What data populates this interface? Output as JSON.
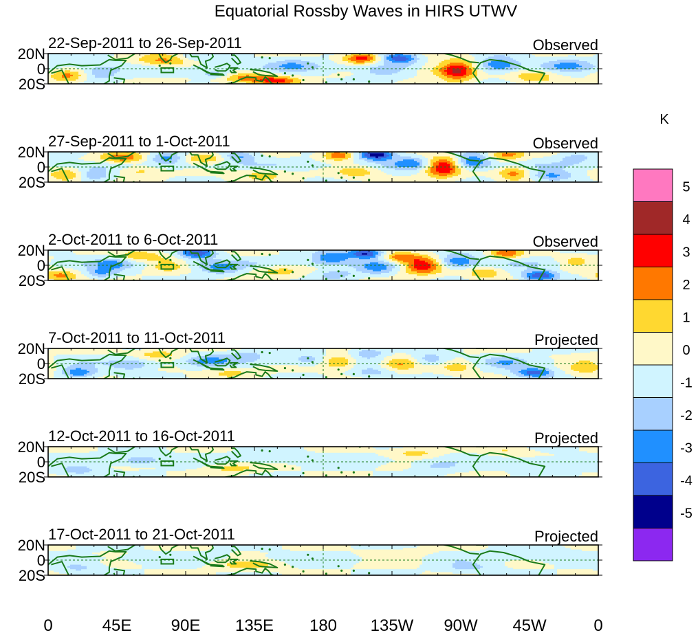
{
  "chart_data": {
    "type": "heatmap",
    "title": "Equatorial Rossby Waves in HIRS UTWV",
    "colorbar": {
      "unit_label": "K",
      "tick_labels": [
        "5",
        "4",
        "3",
        "2",
        "1",
        "0",
        "-1",
        "-2",
        "-3",
        "-4",
        "-5"
      ],
      "levels": [
        5,
        4,
        3,
        2,
        1,
        0,
        -1,
        -2,
        -3,
        -4,
        -5
      ],
      "colors": [
        "#ff78c0",
        "#a02828",
        "#ff0000",
        "#ff7800",
        "#ffd830",
        "#fff8c8",
        "#d0f4ff",
        "#a8d0ff",
        "#2090ff",
        "#3c64e0",
        "#00008c",
        "#8c28f0"
      ]
    },
    "x_ticks": [
      "0",
      "45E",
      "90E",
      "135E",
      "180",
      "135W",
      "90W",
      "45W",
      "0"
    ],
    "x_tick_lon": [
      0,
      45,
      90,
      135,
      180,
      225,
      270,
      315,
      360
    ],
    "y_ticks": [
      "20N",
      "0",
      "20S"
    ],
    "y_tick_lat": [
      20,
      0,
      -20
    ],
    "lat_range": [
      -20,
      20
    ],
    "lon_range": [
      0,
      360
    ],
    "panels": [
      {
        "period": "22-Sep-2011 to 26-Sep-2011",
        "kind": "Observed",
        "anomalies": [
          {
            "lon": 78,
            "lat": 10,
            "amp": 2.6,
            "sx": 14,
            "sy": 6
          },
          {
            "lon": 95,
            "lat": 14,
            "amp": -1.4,
            "sx": 10,
            "sy": 5
          },
          {
            "lon": 12,
            "lat": -10,
            "amp": 2.2,
            "sx": 8,
            "sy": 6
          },
          {
            "lon": 35,
            "lat": -6,
            "amp": -1.8,
            "sx": 8,
            "sy": 6
          },
          {
            "lon": 128,
            "lat": -12,
            "amp": 2.4,
            "sx": 14,
            "sy": 5
          },
          {
            "lon": 150,
            "lat": -16,
            "amp": 2.8,
            "sx": 10,
            "sy": 4
          },
          {
            "lon": 110,
            "lat": -8,
            "amp": -2.2,
            "sx": 8,
            "sy": 4
          },
          {
            "lon": 160,
            "lat": 6,
            "amp": -1.4,
            "sx": 10,
            "sy": 6
          },
          {
            "lon": 205,
            "lat": 14,
            "amp": 3.6,
            "sx": 8,
            "sy": 5
          },
          {
            "lon": 230,
            "lat": 14,
            "amp": -3.8,
            "sx": 8,
            "sy": 5
          },
          {
            "lon": 218,
            "lat": -4,
            "amp": -1.4,
            "sx": 10,
            "sy": 6
          },
          {
            "lon": 252,
            "lat": 0,
            "amp": 1.6,
            "sx": 10,
            "sy": 6
          },
          {
            "lon": 268,
            "lat": -2,
            "amp": 4.4,
            "sx": 8,
            "sy": 9
          },
          {
            "lon": 295,
            "lat": 6,
            "amp": -2.6,
            "sx": 9,
            "sy": 7
          },
          {
            "lon": 318,
            "lat": -10,
            "amp": 1.8,
            "sx": 10,
            "sy": 6
          },
          {
            "lon": 340,
            "lat": 6,
            "amp": -1.6,
            "sx": 10,
            "sy": 6
          }
        ]
      },
      {
        "period": "27-Sep-2011 to 1-Oct-2011",
        "kind": "Observed",
        "anomalies": [
          {
            "lon": 48,
            "lat": 12,
            "amp": 2.8,
            "sx": 10,
            "sy": 5
          },
          {
            "lon": 78,
            "lat": 12,
            "amp": -2.4,
            "sx": 8,
            "sy": 5
          },
          {
            "lon": 102,
            "lat": 12,
            "amp": 2.0,
            "sx": 10,
            "sy": 5
          },
          {
            "lon": 125,
            "lat": 14,
            "amp": -2.2,
            "sx": 8,
            "sy": 5
          },
          {
            "lon": 60,
            "lat": -4,
            "amp": 1.6,
            "sx": 10,
            "sy": 6
          },
          {
            "lon": 30,
            "lat": -10,
            "amp": -1.8,
            "sx": 8,
            "sy": 6
          },
          {
            "lon": 12,
            "lat": -12,
            "amp": 2.0,
            "sx": 8,
            "sy": 6
          },
          {
            "lon": 140,
            "lat": -10,
            "amp": 1.4,
            "sx": 12,
            "sy": 6
          },
          {
            "lon": 190,
            "lat": 16,
            "amp": 3.0,
            "sx": 7,
            "sy": 5
          },
          {
            "lon": 215,
            "lat": 16,
            "amp": -4.8,
            "sx": 8,
            "sy": 5
          },
          {
            "lon": 202,
            "lat": -6,
            "amp": 1.6,
            "sx": 10,
            "sy": 6
          },
          {
            "lon": 238,
            "lat": 6,
            "amp": -2.0,
            "sx": 9,
            "sy": 6
          },
          {
            "lon": 258,
            "lat": 0,
            "amp": 4.6,
            "sx": 8,
            "sy": 9
          },
          {
            "lon": 278,
            "lat": 8,
            "amp": -2.8,
            "sx": 8,
            "sy": 7
          },
          {
            "lon": 300,
            "lat": 16,
            "amp": 2.4,
            "sx": 8,
            "sy": 5
          },
          {
            "lon": 305,
            "lat": -8,
            "amp": 2.4,
            "sx": 7,
            "sy": 7
          },
          {
            "lon": 330,
            "lat": -12,
            "amp": -2.2,
            "sx": 10,
            "sy": 5
          },
          {
            "lon": 345,
            "lat": 12,
            "amp": -1.4,
            "sx": 8,
            "sy": 5
          }
        ]
      },
      {
        "period": "2-Oct-2011 to 6-Oct-2011",
        "kind": "Observed",
        "anomalies": [
          {
            "lon": 60,
            "lat": 12,
            "amp": 2.0,
            "sx": 10,
            "sy": 5
          },
          {
            "lon": 98,
            "lat": 16,
            "amp": -3.8,
            "sx": 8,
            "sy": 5
          },
          {
            "lon": 78,
            "lat": 0,
            "amp": 1.8,
            "sx": 8,
            "sy": 6
          },
          {
            "lon": 42,
            "lat": 2,
            "amp": -1.6,
            "sx": 8,
            "sy": 6
          },
          {
            "lon": 8,
            "lat": -14,
            "amp": 2.4,
            "sx": 8,
            "sy": 5
          },
          {
            "lon": 35,
            "lat": -10,
            "amp": -2.0,
            "sx": 7,
            "sy": 5
          },
          {
            "lon": 112,
            "lat": -4,
            "amp": -2.0,
            "sx": 10,
            "sy": 6
          },
          {
            "lon": 150,
            "lat": -8,
            "amp": 1.4,
            "sx": 12,
            "sy": 6
          },
          {
            "lon": 185,
            "lat": 10,
            "amp": -2.8,
            "sx": 9,
            "sy": 6
          },
          {
            "lon": 208,
            "lat": 16,
            "amp": -4.2,
            "sx": 8,
            "sy": 5
          },
          {
            "lon": 230,
            "lat": 10,
            "amp": 2.6,
            "sx": 8,
            "sy": 5
          },
          {
            "lon": 188,
            "lat": -12,
            "amp": -1.6,
            "sx": 9,
            "sy": 5
          },
          {
            "lon": 215,
            "lat": -4,
            "amp": -2.0,
            "sx": 8,
            "sy": 6
          },
          {
            "lon": 245,
            "lat": 0,
            "amp": 4.2,
            "sx": 9,
            "sy": 8
          },
          {
            "lon": 268,
            "lat": 6,
            "amp": -2.6,
            "sx": 9,
            "sy": 7
          },
          {
            "lon": 285,
            "lat": -10,
            "amp": 1.8,
            "sx": 8,
            "sy": 6
          },
          {
            "lon": 300,
            "lat": 16,
            "amp": 2.8,
            "sx": 7,
            "sy": 5
          },
          {
            "lon": 322,
            "lat": -14,
            "amp": -3.8,
            "sx": 8,
            "sy": 5
          },
          {
            "lon": 345,
            "lat": 4,
            "amp": 1.6,
            "sx": 8,
            "sy": 6
          }
        ]
      },
      {
        "period": "7-Oct-2011 to 11-Oct-2011",
        "kind": "Projected",
        "anomalies": [
          {
            "lon": 72,
            "lat": 12,
            "amp": 1.6,
            "sx": 10,
            "sy": 5
          },
          {
            "lon": 20,
            "lat": -12,
            "amp": -2.8,
            "sx": 8,
            "sy": 5
          },
          {
            "lon": 55,
            "lat": -2,
            "amp": -1.6,
            "sx": 10,
            "sy": 6
          },
          {
            "lon": 105,
            "lat": 4,
            "amp": -1.8,
            "sx": 10,
            "sy": 6
          },
          {
            "lon": 130,
            "lat": 10,
            "amp": -1.4,
            "sx": 10,
            "sy": 5
          },
          {
            "lon": 120,
            "lat": -12,
            "amp": 1.2,
            "sx": 12,
            "sy": 5
          },
          {
            "lon": 170,
            "lat": 6,
            "amp": -1.4,
            "sx": 9,
            "sy": 5
          },
          {
            "lon": 190,
            "lat": 2,
            "amp": 2.6,
            "sx": 8,
            "sy": 6
          },
          {
            "lon": 210,
            "lat": 14,
            "amp": -1.8,
            "sx": 8,
            "sy": 5
          },
          {
            "lon": 230,
            "lat": 0,
            "amp": 2.4,
            "sx": 9,
            "sy": 6
          },
          {
            "lon": 250,
            "lat": 6,
            "amp": -1.6,
            "sx": 8,
            "sy": 6
          },
          {
            "lon": 212,
            "lat": -12,
            "amp": -1.4,
            "sx": 9,
            "sy": 5
          },
          {
            "lon": 268,
            "lat": -4,
            "amp": 1.6,
            "sx": 8,
            "sy": 6
          },
          {
            "lon": 318,
            "lat": -12,
            "amp": -3.4,
            "sx": 9,
            "sy": 5
          },
          {
            "lon": 300,
            "lat": 2,
            "amp": -1.4,
            "sx": 8,
            "sy": 6
          },
          {
            "lon": 352,
            "lat": -4,
            "amp": 1.8,
            "sx": 8,
            "sy": 8
          }
        ]
      },
      {
        "period": "12-Oct-2011 to 16-Oct-2011",
        "kind": "Projected",
        "anomalies": [
          {
            "lon": 20,
            "lat": -12,
            "amp": -1.4,
            "sx": 10,
            "sy": 5
          },
          {
            "lon": 60,
            "lat": 2,
            "amp": -1.6,
            "sx": 9,
            "sy": 5
          },
          {
            "lon": 120,
            "lat": -8,
            "amp": 1.4,
            "sx": 12,
            "sy": 5
          },
          {
            "lon": 145,
            "lat": 6,
            "amp": -1.0,
            "sx": 10,
            "sy": 5
          },
          {
            "lon": 240,
            "lat": 12,
            "amp": 1.4,
            "sx": 10,
            "sy": 5
          },
          {
            "lon": 255,
            "lat": -6,
            "amp": -1.2,
            "sx": 10,
            "sy": 5
          },
          {
            "lon": 325,
            "lat": -6,
            "amp": -1.2,
            "sx": 10,
            "sy": 6
          },
          {
            "lon": 300,
            "lat": 14,
            "amp": 1.0,
            "sx": 10,
            "sy": 5
          }
        ]
      },
      {
        "period": "17-Oct-2011 to 21-Oct-2011",
        "kind": "Projected",
        "anomalies": [
          {
            "lon": 130,
            "lat": -6,
            "amp": 1.4,
            "sx": 14,
            "sy": 5
          },
          {
            "lon": 20,
            "lat": -10,
            "amp": -1.2,
            "sx": 10,
            "sy": 5
          },
          {
            "lon": 230,
            "lat": 4,
            "amp": 0.8,
            "sx": 16,
            "sy": 6
          },
          {
            "lon": 275,
            "lat": -10,
            "amp": -1.2,
            "sx": 12,
            "sy": 5
          },
          {
            "lon": 320,
            "lat": 10,
            "amp": -0.8,
            "sx": 12,
            "sy": 5
          }
        ]
      }
    ]
  }
}
